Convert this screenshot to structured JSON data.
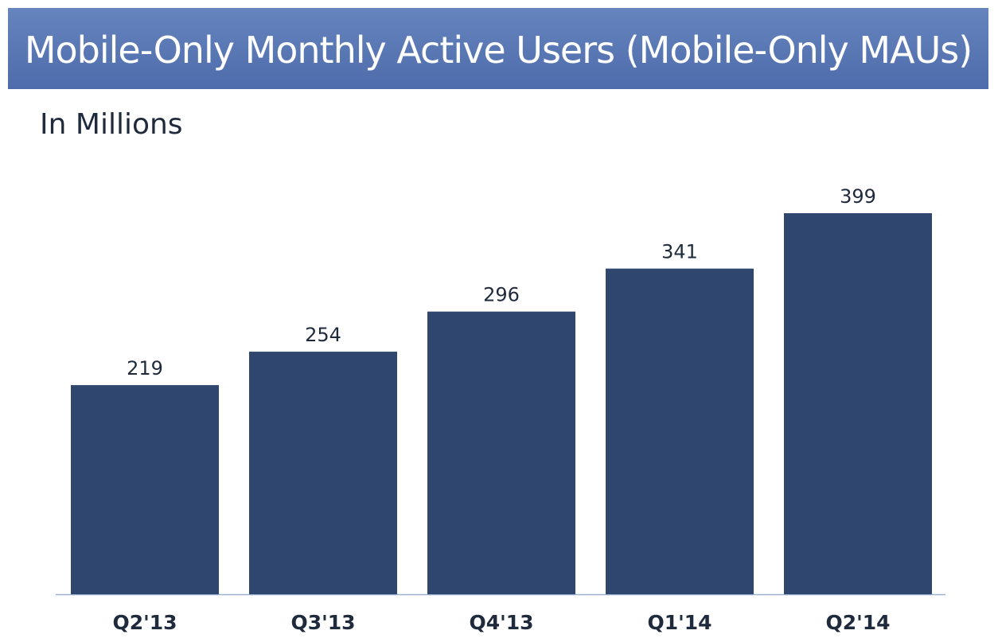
{
  "title": "Mobile-Only Monthly Active Users (Mobile-Only MAUs)",
  "subtitle": "In Millions",
  "colors": {
    "banner": "#5a78b6",
    "bar": "#2f466e",
    "axis": "#9fb0cf",
    "label": "#1f2a3c"
  },
  "chart_data": {
    "type": "bar",
    "categories": [
      "Q2'13",
      "Q3'13",
      "Q4'13",
      "Q1'14",
      "Q2'14"
    ],
    "values": [
      219,
      254,
      296,
      341,
      399
    ],
    "ylim": [
      0,
      399
    ],
    "grid": false,
    "data_labels": true
  }
}
